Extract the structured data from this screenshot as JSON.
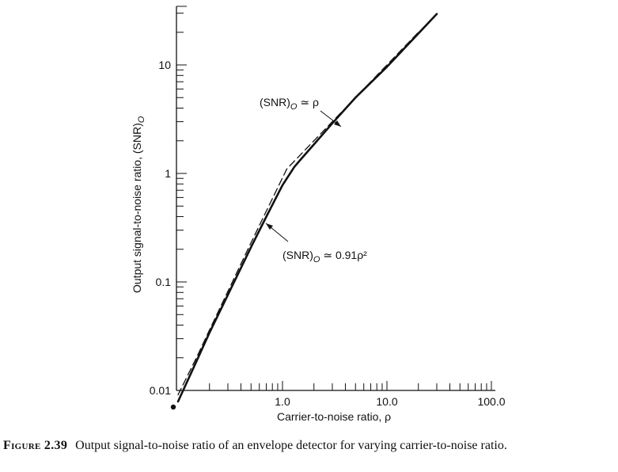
{
  "caption": {
    "number": "Figure 2.39",
    "text": "Output signal-to-noise ratio of an envelope detector for varying carrier-to-noise ratio."
  },
  "chart_data": {
    "type": "line",
    "x_scale": "log",
    "y_scale": "log",
    "xlabel": "Carrier-to-noise ratio, ρ",
    "ylabel": "Output signal-to-noise ratio, (SNR)",
    "ylabel_subscript": "O",
    "xlim": [
      0.1,
      100.0
    ],
    "ylim": [
      0.01,
      30
    ],
    "x_tick_labels": [
      {
        "value": 1.0,
        "label": "1.0"
      },
      {
        "value": 10.0,
        "label": "10.0"
      },
      {
        "value": 100.0,
        "label": "100.0"
      }
    ],
    "y_tick_labels": [
      {
        "value": 0.01,
        "label": "0.01"
      },
      {
        "value": 0.1,
        "label": "0.1"
      },
      {
        "value": 1,
        "label": "1"
      },
      {
        "value": 10,
        "label": "10"
      }
    ],
    "series": [
      {
        "style": "solid",
        "color": "#111111",
        "x": [
          0.1,
          0.15,
          0.2,
          0.3,
          0.5,
          0.7,
          1.0,
          1.3,
          1.5,
          2.0,
          3.0,
          5.0,
          10.0,
          20.0,
          30.0
        ],
        "y": [
          0.0079,
          0.0185,
          0.034,
          0.076,
          0.21,
          0.4,
          0.78,
          1.15,
          1.35,
          1.85,
          2.9,
          5.0,
          9.6,
          19.5,
          29.5
        ]
      },
      {
        "style": "dashed",
        "color": "#111111",
        "x": [
          0.1,
          0.15,
          0.2,
          0.3,
          0.5,
          0.7,
          0.9,
          1.1,
          2.0,
          3.0,
          5.0,
          10.0,
          20.0
        ],
        "y": [
          0.0091,
          0.02,
          0.036,
          0.082,
          0.23,
          0.45,
          0.74,
          1.1,
          2.0,
          3.0,
          5.0,
          10.0,
          20.0
        ]
      }
    ],
    "annotations": [
      {
        "text": "(SNR)",
        "subscript": "O",
        "rest": " ≃ ρ",
        "points_to": {
          "x": 3.0,
          "y": 3.0
        }
      },
      {
        "text": "(SNR)",
        "subscript": "O",
        "rest": " ≃ 0.91ρ²",
        "points_to": {
          "x": 0.72,
          "y": 0.42
        }
      }
    ],
    "grid": false,
    "legend": "none"
  },
  "icons": {
    "origin_marker": "filled-dot"
  }
}
